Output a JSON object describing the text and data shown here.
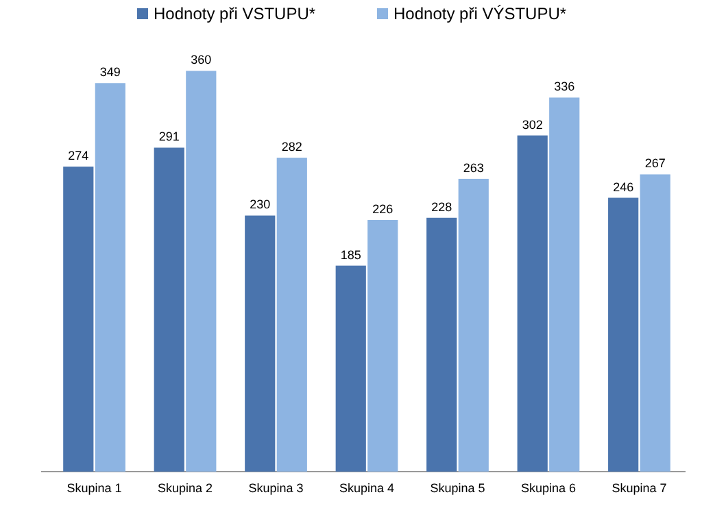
{
  "chart_data": {
    "type": "bar",
    "categories": [
      "Skupina 1",
      "Skupina 2",
      "Skupina 3",
      "Skupina 4",
      "Skupina 5",
      "Skupina 6",
      "Skupina 7"
    ],
    "series": [
      {
        "name": "Hodnoty při VSTUPU*",
        "color": "#4a74ad",
        "values": [
          274,
          291,
          230,
          185,
          228,
          302,
          246
        ]
      },
      {
        "name": "Hodnoty při VÝSTUPU*",
        "color": "#8db4e2",
        "values": [
          349,
          360,
          282,
          226,
          263,
          336,
          267
        ]
      }
    ],
    "data_labels": true,
    "legend": "top"
  }
}
